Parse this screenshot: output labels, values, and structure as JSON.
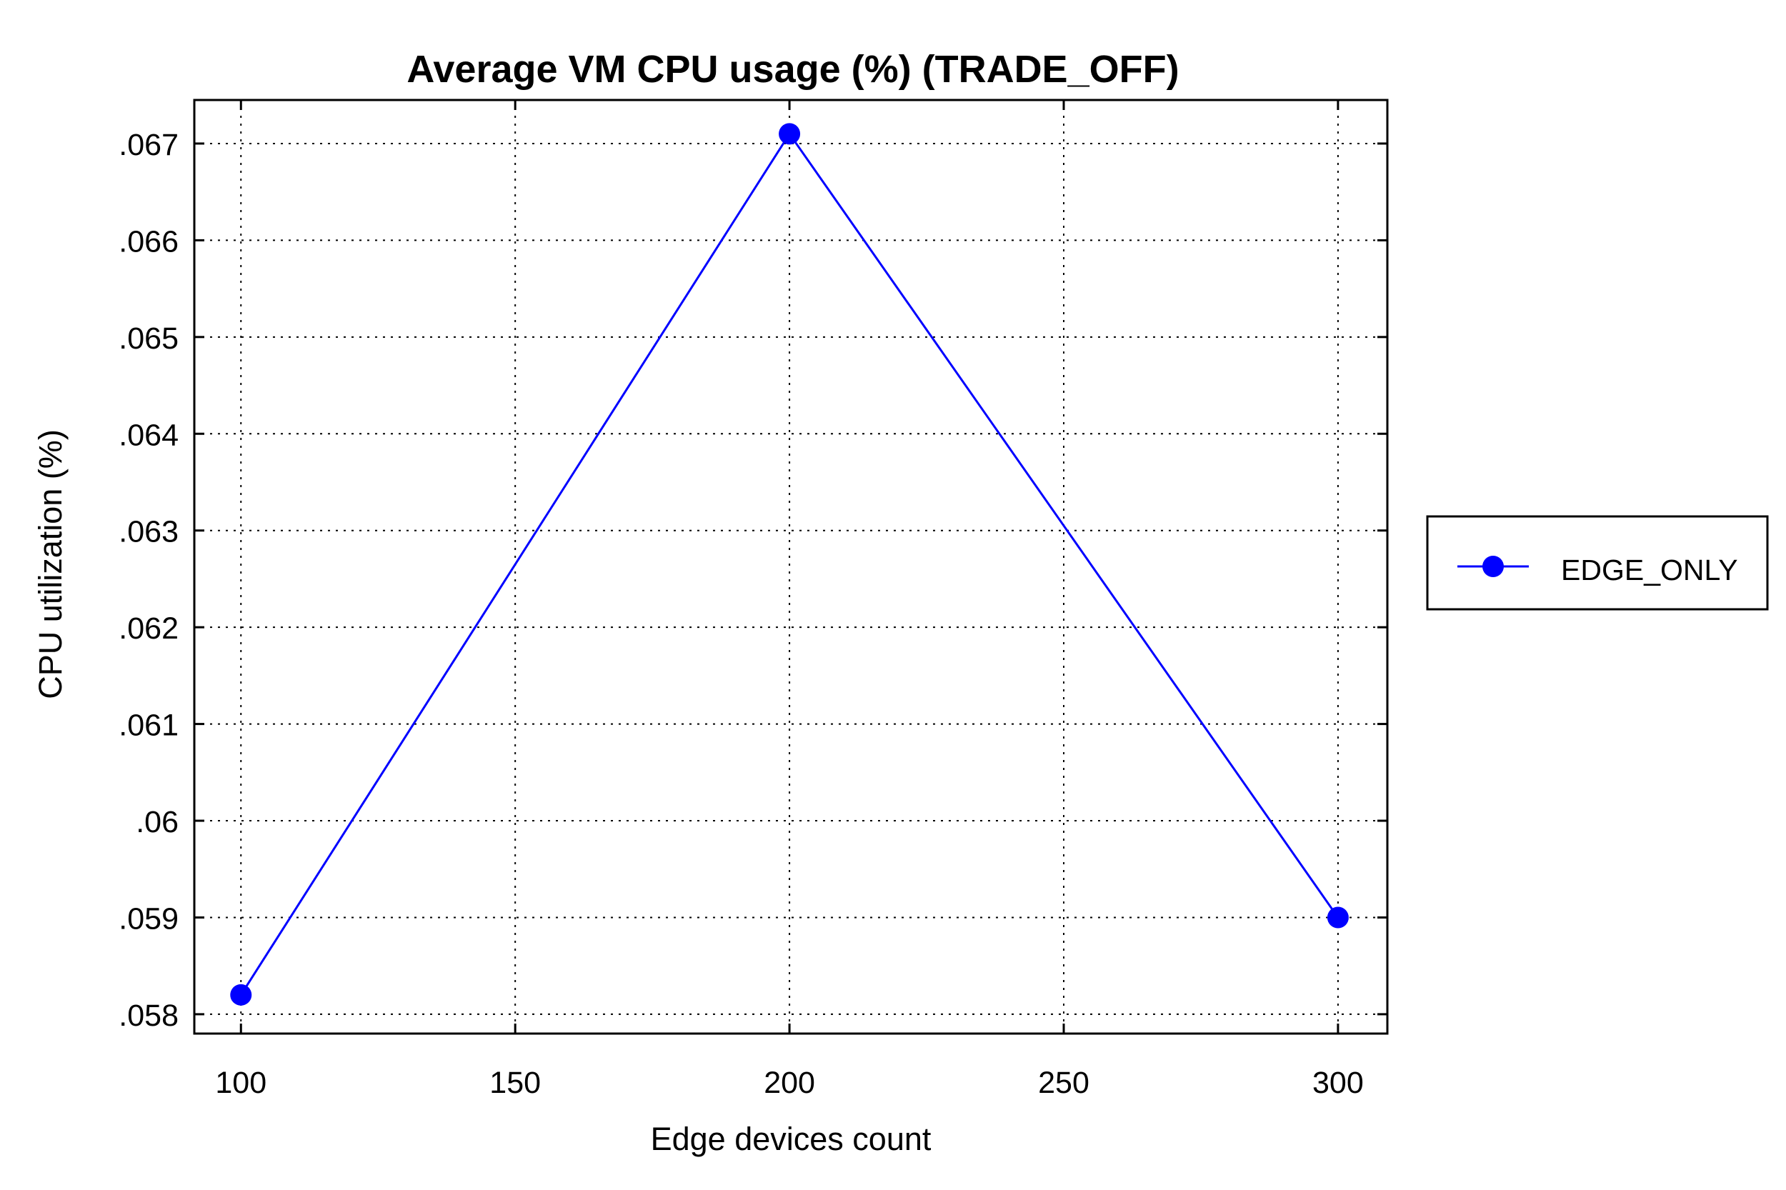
{
  "chart_data": {
    "type": "line",
    "title": "Average VM CPU usage (%) (TRADE_OFF)",
    "xlabel": "Edge devices count",
    "ylabel": "CPU utilization (%)",
    "x": [
      100,
      200,
      300
    ],
    "series": [
      {
        "name": "EDGE_ONLY",
        "values": [
          0.0582,
          0.0671,
          0.059
        ],
        "color": "#0000ff",
        "marker": "circle"
      }
    ],
    "xlim": [
      91.5,
      309
    ],
    "ylim": [
      0.0578,
      0.06745
    ],
    "x_ticks": [
      100,
      150,
      200,
      250,
      300
    ],
    "x_tick_labels": [
      "100",
      "150",
      "200",
      "250",
      "300"
    ],
    "y_ticks": [
      0.058,
      0.059,
      0.06,
      0.061,
      0.062,
      0.063,
      0.064,
      0.065,
      0.066,
      0.067
    ],
    "y_tick_labels": [
      ".058",
      ".059",
      ".06",
      ".061",
      ".062",
      ".063",
      ".064",
      ".065",
      ".066",
      ".067"
    ],
    "grid": true,
    "grid_style": "dotted",
    "legend_position": "right"
  }
}
